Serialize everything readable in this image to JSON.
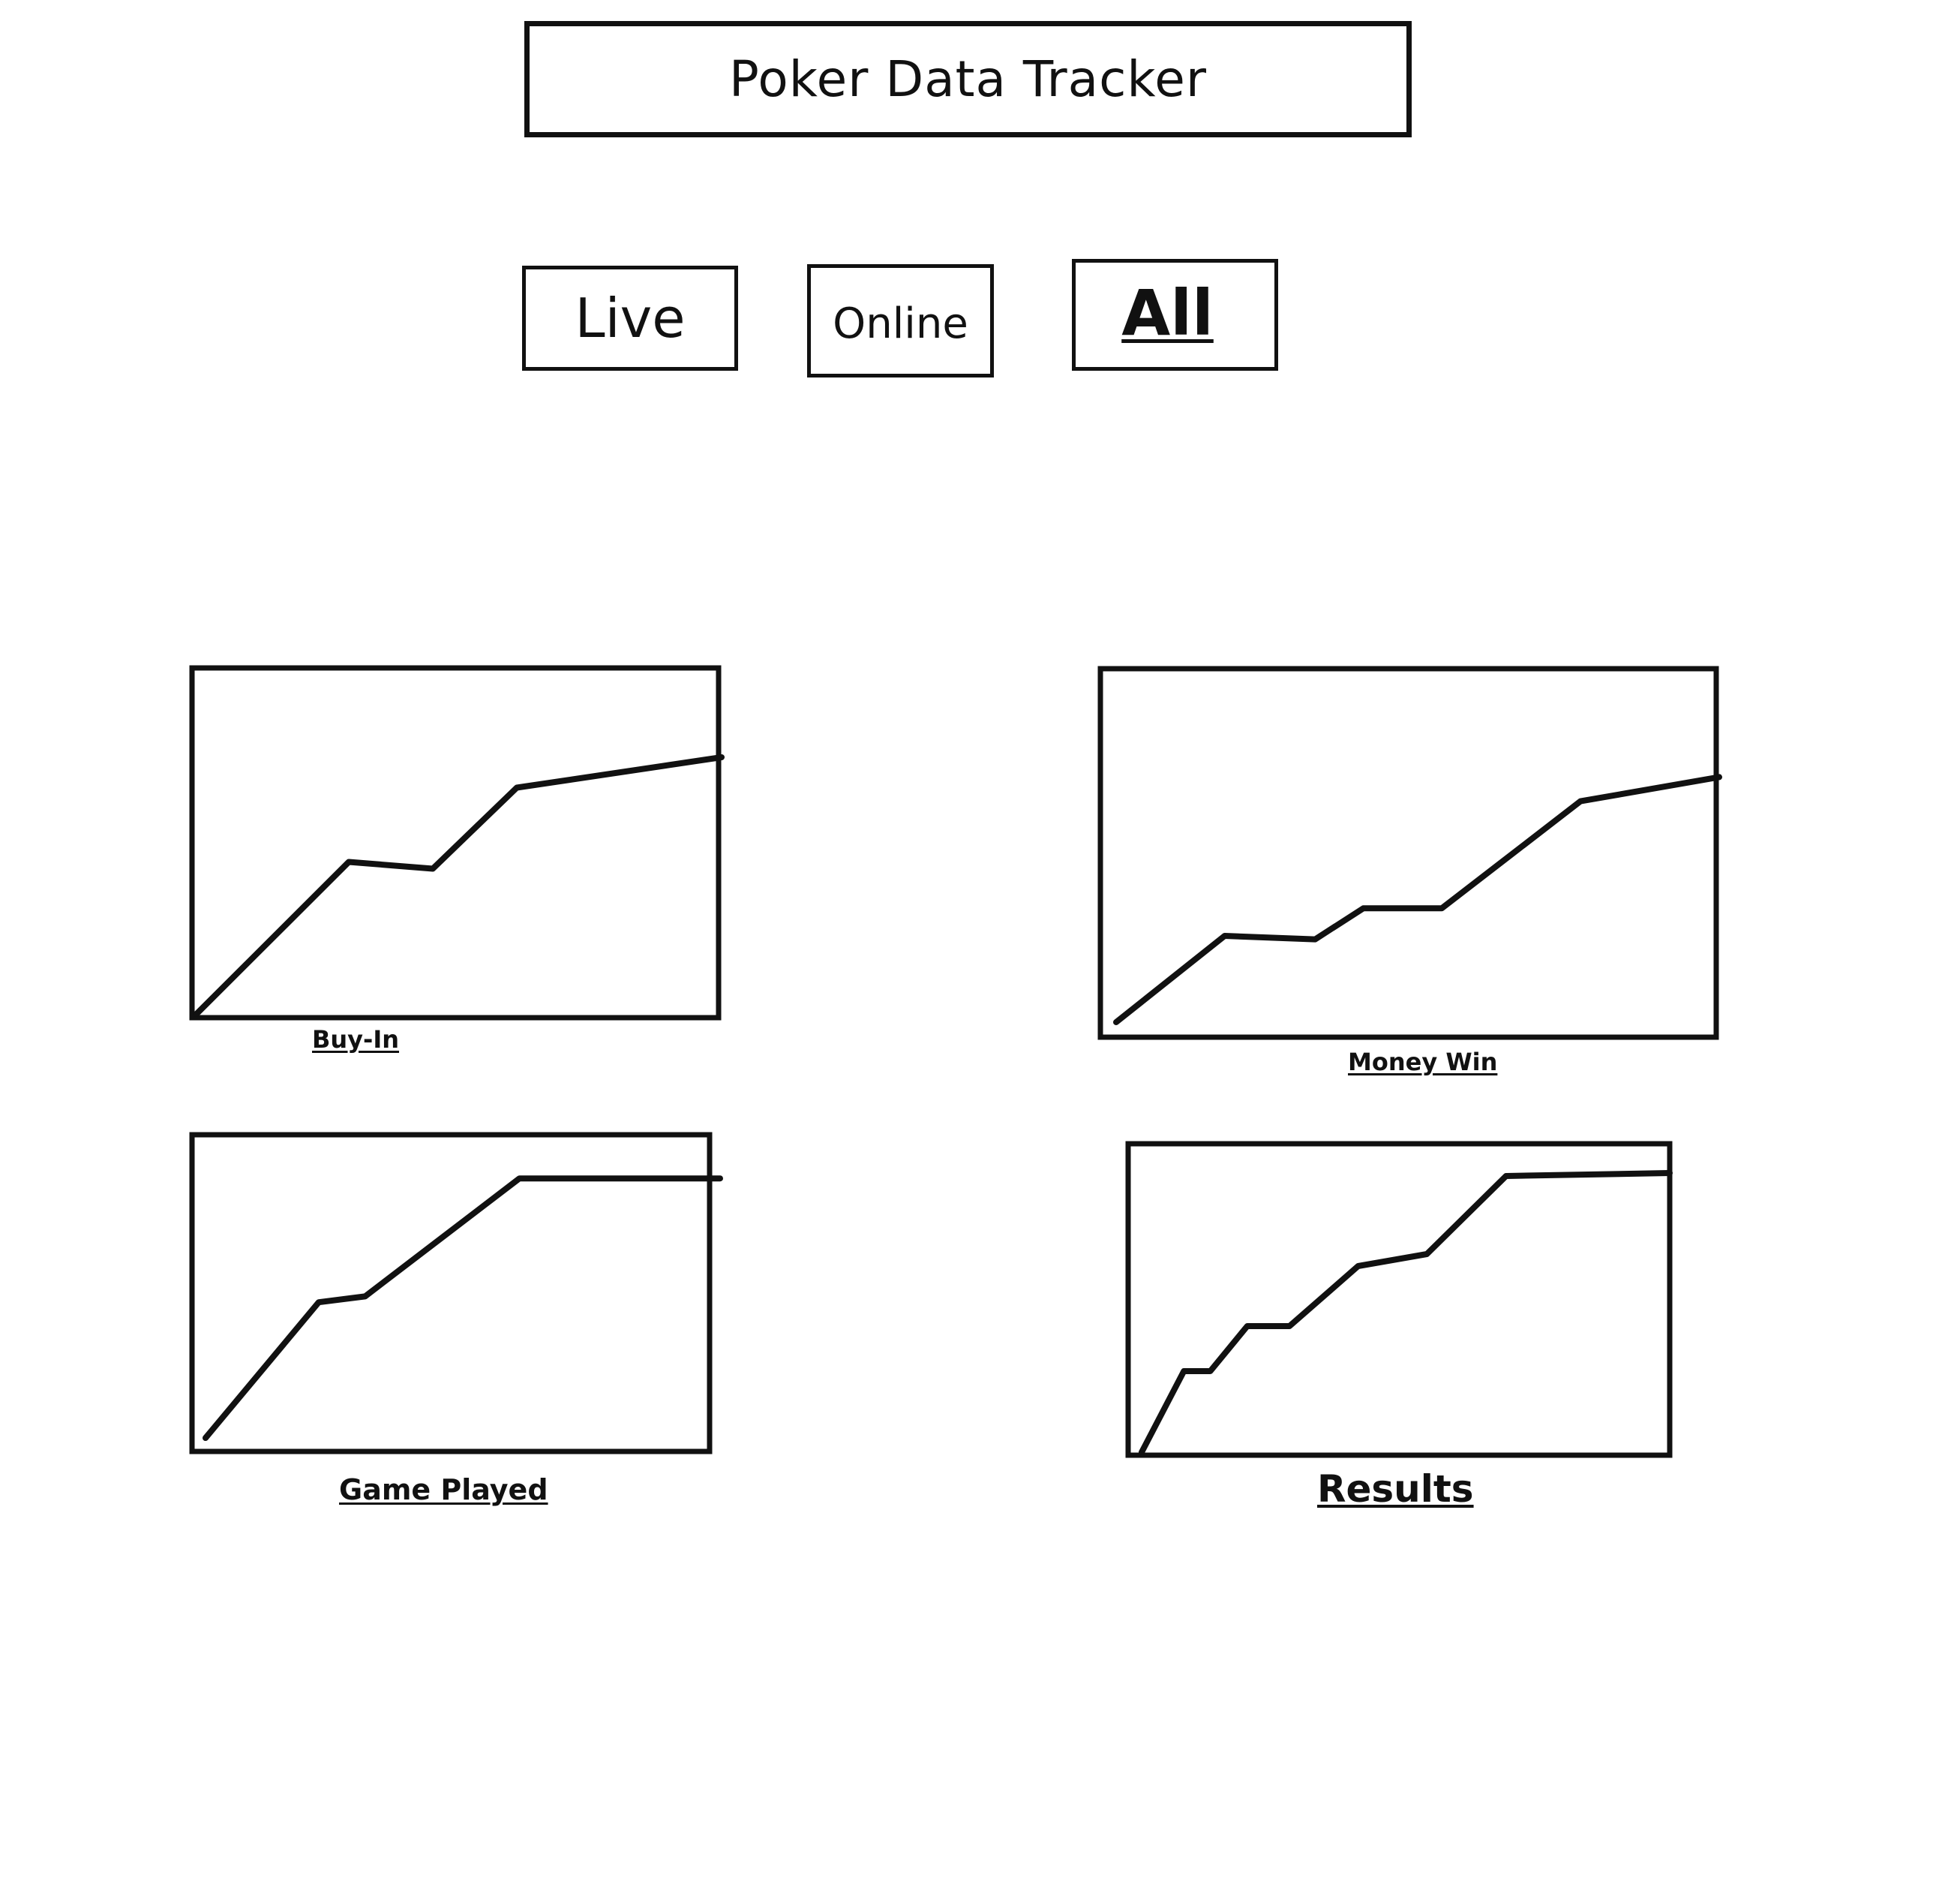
{
  "header": {
    "title": "Poker Data Tracker"
  },
  "filters": {
    "items": [
      {
        "label": "Live",
        "selected": false
      },
      {
        "label": "Online",
        "selected": false
      },
      {
        "label": "All",
        "selected": true
      }
    ]
  },
  "chart_data": [
    {
      "type": "line",
      "xlabel": "Buy-In",
      "x": [
        0,
        1,
        2,
        3,
        4
      ],
      "values": [
        0,
        0.45,
        0.43,
        0.67,
        0.76
      ]
    },
    {
      "type": "line",
      "xlabel": "Money Win",
      "x": [
        0,
        1,
        2,
        3,
        4,
        5,
        6
      ],
      "values": [
        0,
        0.25,
        0.24,
        0.33,
        0.33,
        0.64,
        0.71
      ]
    },
    {
      "type": "line",
      "xlabel": "Game Played",
      "x": [
        0,
        1,
        2,
        3,
        4
      ],
      "values": [
        0,
        0.46,
        0.48,
        0.88,
        0.88
      ]
    },
    {
      "type": "line",
      "xlabel": "Results",
      "x": [
        0,
        1,
        2,
        3,
        4,
        5,
        6,
        7,
        8
      ],
      "values": [
        0,
        0.27,
        0.27,
        0.42,
        0.42,
        0.62,
        0.66,
        0.92,
        0.93
      ]
    }
  ]
}
